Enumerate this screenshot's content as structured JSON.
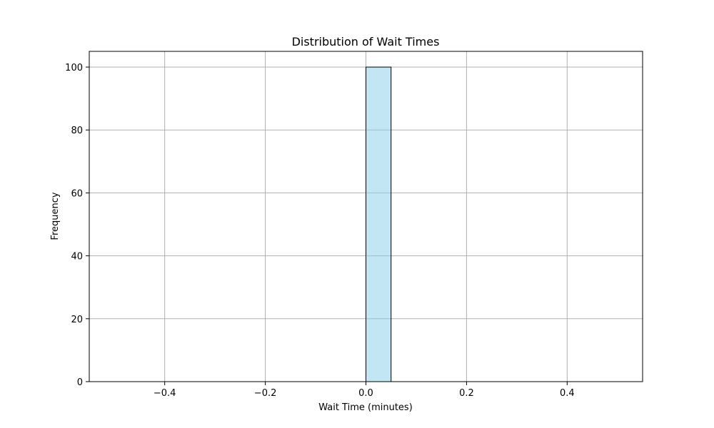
{
  "chart_data": {
    "type": "bar",
    "title": "Distribution of Wait Times",
    "xlabel": "Wait Time (minutes)",
    "ylabel": "Frequency",
    "xlim": [
      -0.55,
      0.55
    ],
    "ylim": [
      0,
      105
    ],
    "xticks": [
      -0.4,
      -0.2,
      0.0,
      0.2,
      0.4
    ],
    "xtick_labels": [
      "−0.4",
      "−0.2",
      "0.0",
      "0.2",
      "0.4"
    ],
    "yticks": [
      0,
      20,
      40,
      60,
      80,
      100
    ],
    "ytick_labels": [
      "0",
      "20",
      "40",
      "60",
      "80",
      "100"
    ],
    "grid": true,
    "bins": [
      {
        "start": -0.5,
        "end": -0.45,
        "count": 0
      },
      {
        "start": -0.45,
        "end": -0.4,
        "count": 0
      },
      {
        "start": -0.4,
        "end": -0.35,
        "count": 0
      },
      {
        "start": -0.35,
        "end": -0.3,
        "count": 0
      },
      {
        "start": -0.3,
        "end": -0.25,
        "count": 0
      },
      {
        "start": -0.25,
        "end": -0.2,
        "count": 0
      },
      {
        "start": -0.2,
        "end": -0.15,
        "count": 0
      },
      {
        "start": -0.15,
        "end": -0.1,
        "count": 0
      },
      {
        "start": -0.1,
        "end": -0.05,
        "count": 0
      },
      {
        "start": -0.05,
        "end": 0.0,
        "count": 0
      },
      {
        "start": 0.0,
        "end": 0.05,
        "count": 100
      },
      {
        "start": 0.05,
        "end": 0.1,
        "count": 0
      },
      {
        "start": 0.1,
        "end": 0.15,
        "count": 0
      },
      {
        "start": 0.15,
        "end": 0.2,
        "count": 0
      },
      {
        "start": 0.2,
        "end": 0.25,
        "count": 0
      },
      {
        "start": 0.25,
        "end": 0.3,
        "count": 0
      },
      {
        "start": 0.3,
        "end": 0.35,
        "count": 0
      },
      {
        "start": 0.35,
        "end": 0.4,
        "count": 0
      },
      {
        "start": 0.4,
        "end": 0.45,
        "count": 0
      },
      {
        "start": 0.45,
        "end": 0.5,
        "count": 0
      }
    ],
    "colors": {
      "bar_fill": "#87ceeb",
      "bar_edge": "#000000",
      "grid": "#b0b0b0",
      "axes": "#000000"
    }
  }
}
